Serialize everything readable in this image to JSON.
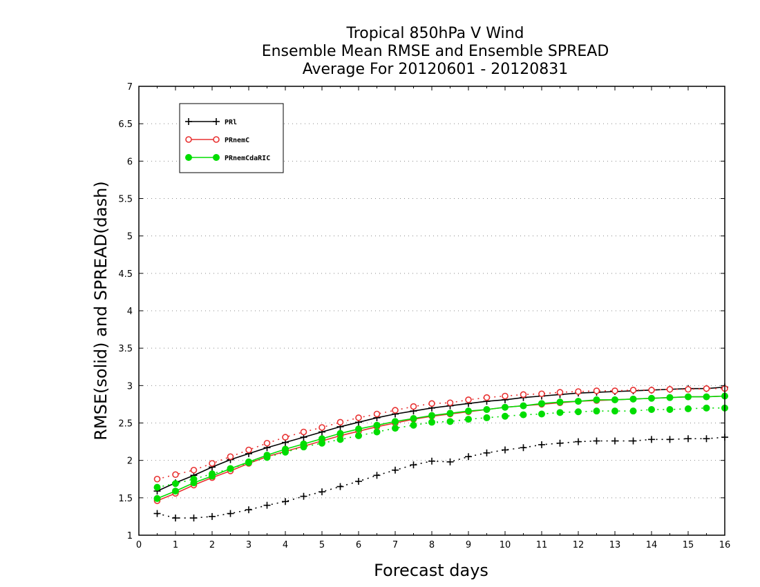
{
  "chart_data": {
    "type": "line",
    "title": [
      "Tropical 850hPa V Wind",
      "Ensemble Mean RMSE and Ensemble SPREAD",
      "Average For 20120601 - 20120831"
    ],
    "xlabel": "Forecast days",
    "ylabel": "RMSE(solid) and SPREAD(dash)",
    "xlim": [
      0,
      16
    ],
    "ylim": [
      1,
      7
    ],
    "xticks": [
      0,
      1,
      2,
      3,
      4,
      5,
      6,
      7,
      8,
      9,
      10,
      11,
      12,
      13,
      14,
      15,
      16
    ],
    "yticks": [
      1,
      1.5,
      2,
      2.5,
      3,
      3.5,
      4,
      4.5,
      5,
      5.5,
      6,
      6.5,
      7
    ],
    "grid": true,
    "legend_position": "top-left",
    "x": [
      0.5,
      1,
      1.5,
      2,
      2.5,
      3,
      3.5,
      4,
      4.5,
      5,
      5.5,
      6,
      6.5,
      7,
      7.5,
      8,
      8.5,
      9,
      9.5,
      10,
      10.5,
      11,
      11.5,
      12,
      12.5,
      13,
      13.5,
      14,
      14.5,
      15,
      15.5,
      16
    ],
    "series": [
      {
        "name": "PRl",
        "color": "#000000",
        "marker": "plus",
        "rmse": [
          1.59,
          1.7,
          1.8,
          1.91,
          2.01,
          2.09,
          2.17,
          2.24,
          2.31,
          2.38,
          2.45,
          2.51,
          2.57,
          2.62,
          2.66,
          2.7,
          2.73,
          2.76,
          2.79,
          2.81,
          2.84,
          2.86,
          2.88,
          2.9,
          2.91,
          2.92,
          2.93,
          2.94,
          2.95,
          2.96,
          2.96,
          2.98
        ],
        "spread": [
          1.29,
          1.23,
          1.23,
          1.25,
          1.29,
          1.34,
          1.4,
          1.45,
          1.52,
          1.58,
          1.65,
          1.72,
          1.8,
          1.87,
          1.94,
          1.99,
          1.98,
          2.05,
          2.1,
          2.14,
          2.17,
          2.21,
          2.23,
          2.25,
          2.26,
          2.26,
          2.26,
          2.28,
          2.28,
          2.29,
          2.29,
          2.31
        ]
      },
      {
        "name": "PRnemC",
        "color": "#e83030",
        "marker": "open-circle",
        "rmse": [
          1.46,
          1.56,
          1.67,
          1.77,
          1.86,
          1.96,
          2.05,
          2.12,
          2.19,
          2.26,
          2.33,
          2.39,
          2.45,
          2.5,
          2.55,
          2.59,
          2.62,
          2.65,
          2.68,
          2.71,
          2.73,
          2.75,
          2.77,
          2.79,
          2.8,
          2.81,
          2.82,
          2.83,
          2.84,
          2.85,
          2.85,
          2.86
        ],
        "spread": [
          1.75,
          1.81,
          1.87,
          1.96,
          2.05,
          2.14,
          2.23,
          2.31,
          2.38,
          2.44,
          2.51,
          2.57,
          2.62,
          2.67,
          2.72,
          2.76,
          2.77,
          2.81,
          2.84,
          2.86,
          2.88,
          2.89,
          2.91,
          2.92,
          2.93,
          2.93,
          2.94,
          2.94,
          2.95,
          2.95,
          2.96,
          2.96
        ]
      },
      {
        "name": "PRnemCdaRIC",
        "color": "#00dd00",
        "marker": "filled-circle",
        "rmse": [
          1.49,
          1.59,
          1.7,
          1.79,
          1.89,
          1.98,
          2.07,
          2.15,
          2.22,
          2.29,
          2.36,
          2.42,
          2.47,
          2.52,
          2.56,
          2.6,
          2.63,
          2.66,
          2.68,
          2.71,
          2.73,
          2.76,
          2.78,
          2.79,
          2.81,
          2.81,
          2.82,
          2.83,
          2.84,
          2.85,
          2.85,
          2.86
        ],
        "spread": [
          1.64,
          1.69,
          1.75,
          1.82,
          1.89,
          1.97,
          2.04,
          2.11,
          2.18,
          2.23,
          2.28,
          2.33,
          2.38,
          2.43,
          2.47,
          2.51,
          2.52,
          2.55,
          2.57,
          2.59,
          2.61,
          2.62,
          2.64,
          2.65,
          2.66,
          2.66,
          2.66,
          2.68,
          2.68,
          2.69,
          2.7,
          2.7
        ]
      }
    ]
  }
}
